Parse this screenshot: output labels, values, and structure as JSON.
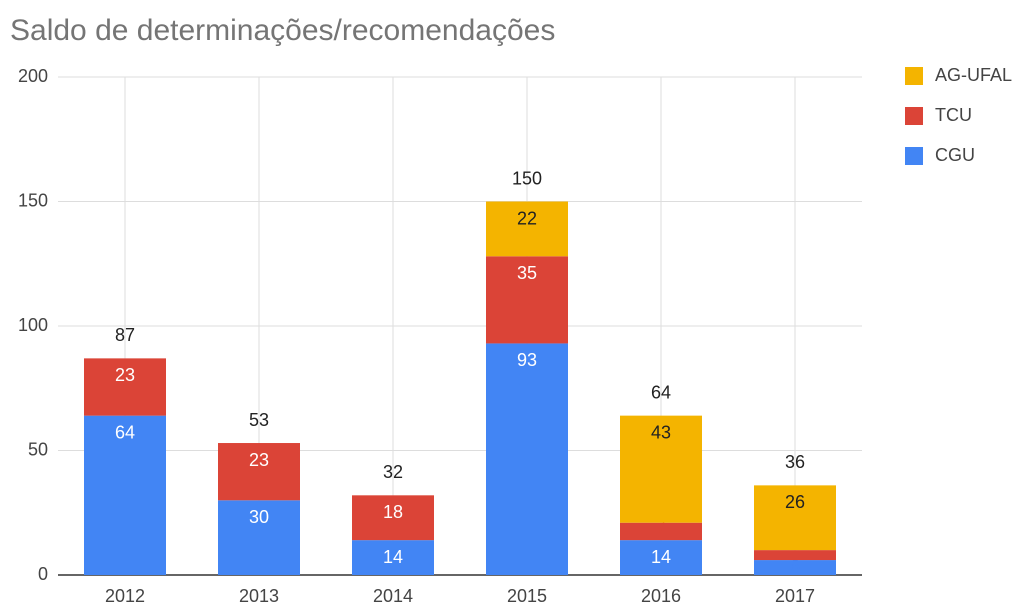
{
  "chart_data": {
    "type": "stacked_bar",
    "title": "Saldo de determinações/recomendações",
    "categories": [
      "2012",
      "2013",
      "2014",
      "2015",
      "2016",
      "2017"
    ],
    "series": [
      {
        "name": "CGU",
        "color": "#4285f4",
        "values": [
          64,
          30,
          14,
          93,
          14,
          6
        ]
      },
      {
        "name": "TCU",
        "color": "#db4437",
        "values": [
          23,
          23,
          18,
          35,
          7,
          4
        ]
      },
      {
        "name": "AG-UFAL",
        "color": "#f4b400",
        "values": [
          null,
          null,
          null,
          22,
          43,
          26
        ]
      }
    ],
    "totals": [
      87,
      53,
      32,
      150,
      64,
      36
    ],
    "ylim": [
      0,
      200
    ],
    "yticks": [
      0,
      50,
      100,
      150,
      200
    ],
    "grid": true,
    "legend": "right"
  }
}
